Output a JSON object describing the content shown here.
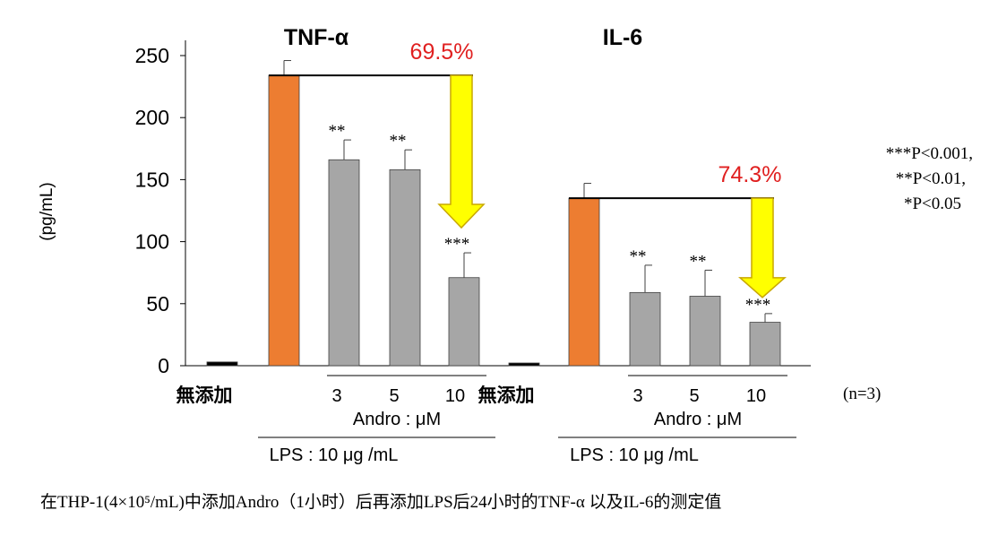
{
  "chart_data": {
    "type": "bar",
    "ylabel": "(pg/mL)",
    "ylim": [
      0,
      250
    ],
    "yticks": [
      "0",
      "50",
      "100",
      "150",
      "200",
      "250"
    ],
    "panels": [
      {
        "title": "TNF-α",
        "categories": [
          "無添加",
          "LPS",
          "3",
          "5",
          "10"
        ],
        "values": [
          3,
          234,
          166,
          158,
          71
        ],
        "errors": [
          0,
          12,
          16,
          16,
          20
        ],
        "significance": [
          "",
          "",
          "**",
          "**",
          "***"
        ],
        "colors": [
          "#000000",
          "#ED7D31",
          "#A6A6A6",
          "#A6A6A6",
          "#A6A6A6"
        ],
        "reduction_label": "69.5%"
      },
      {
        "title": "IL-6",
        "categories": [
          "無添加",
          "LPS",
          "3",
          "5",
          "10"
        ],
        "values": [
          1,
          135,
          59,
          56,
          35
        ],
        "errors": [
          0,
          12,
          22,
          21,
          7
        ],
        "significance": [
          "",
          "",
          "**",
          "**",
          "***"
        ],
        "colors": [
          "#000000",
          "#ED7D31",
          "#A6A6A6",
          "#A6A6A6",
          "#A6A6A6"
        ],
        "reduction_label": "74.3%"
      }
    ],
    "group_labels": {
      "control": "無添加",
      "andro": "Andro : μM",
      "lps": "LPS : 10 μg /mL"
    },
    "legend": {
      "p_values": [
        "***P<0.001,",
        "**P<0.01,",
        "*P<0.05"
      ],
      "n": "(n=3)"
    },
    "caption": "在THP-1(4×10⁵/mL)中添加Andro（1小时）后再添加LPS后24小时的TNF-α 以及IL-6的测定值"
  },
  "colors": {
    "lps_bar": "#ED7D31",
    "andro_bar": "#A6A6A6",
    "arrow_fill": "#FFFF00",
    "arrow_stroke": "#C9A800",
    "percent_text": "#E02020",
    "caption_text": "#E02020"
  }
}
